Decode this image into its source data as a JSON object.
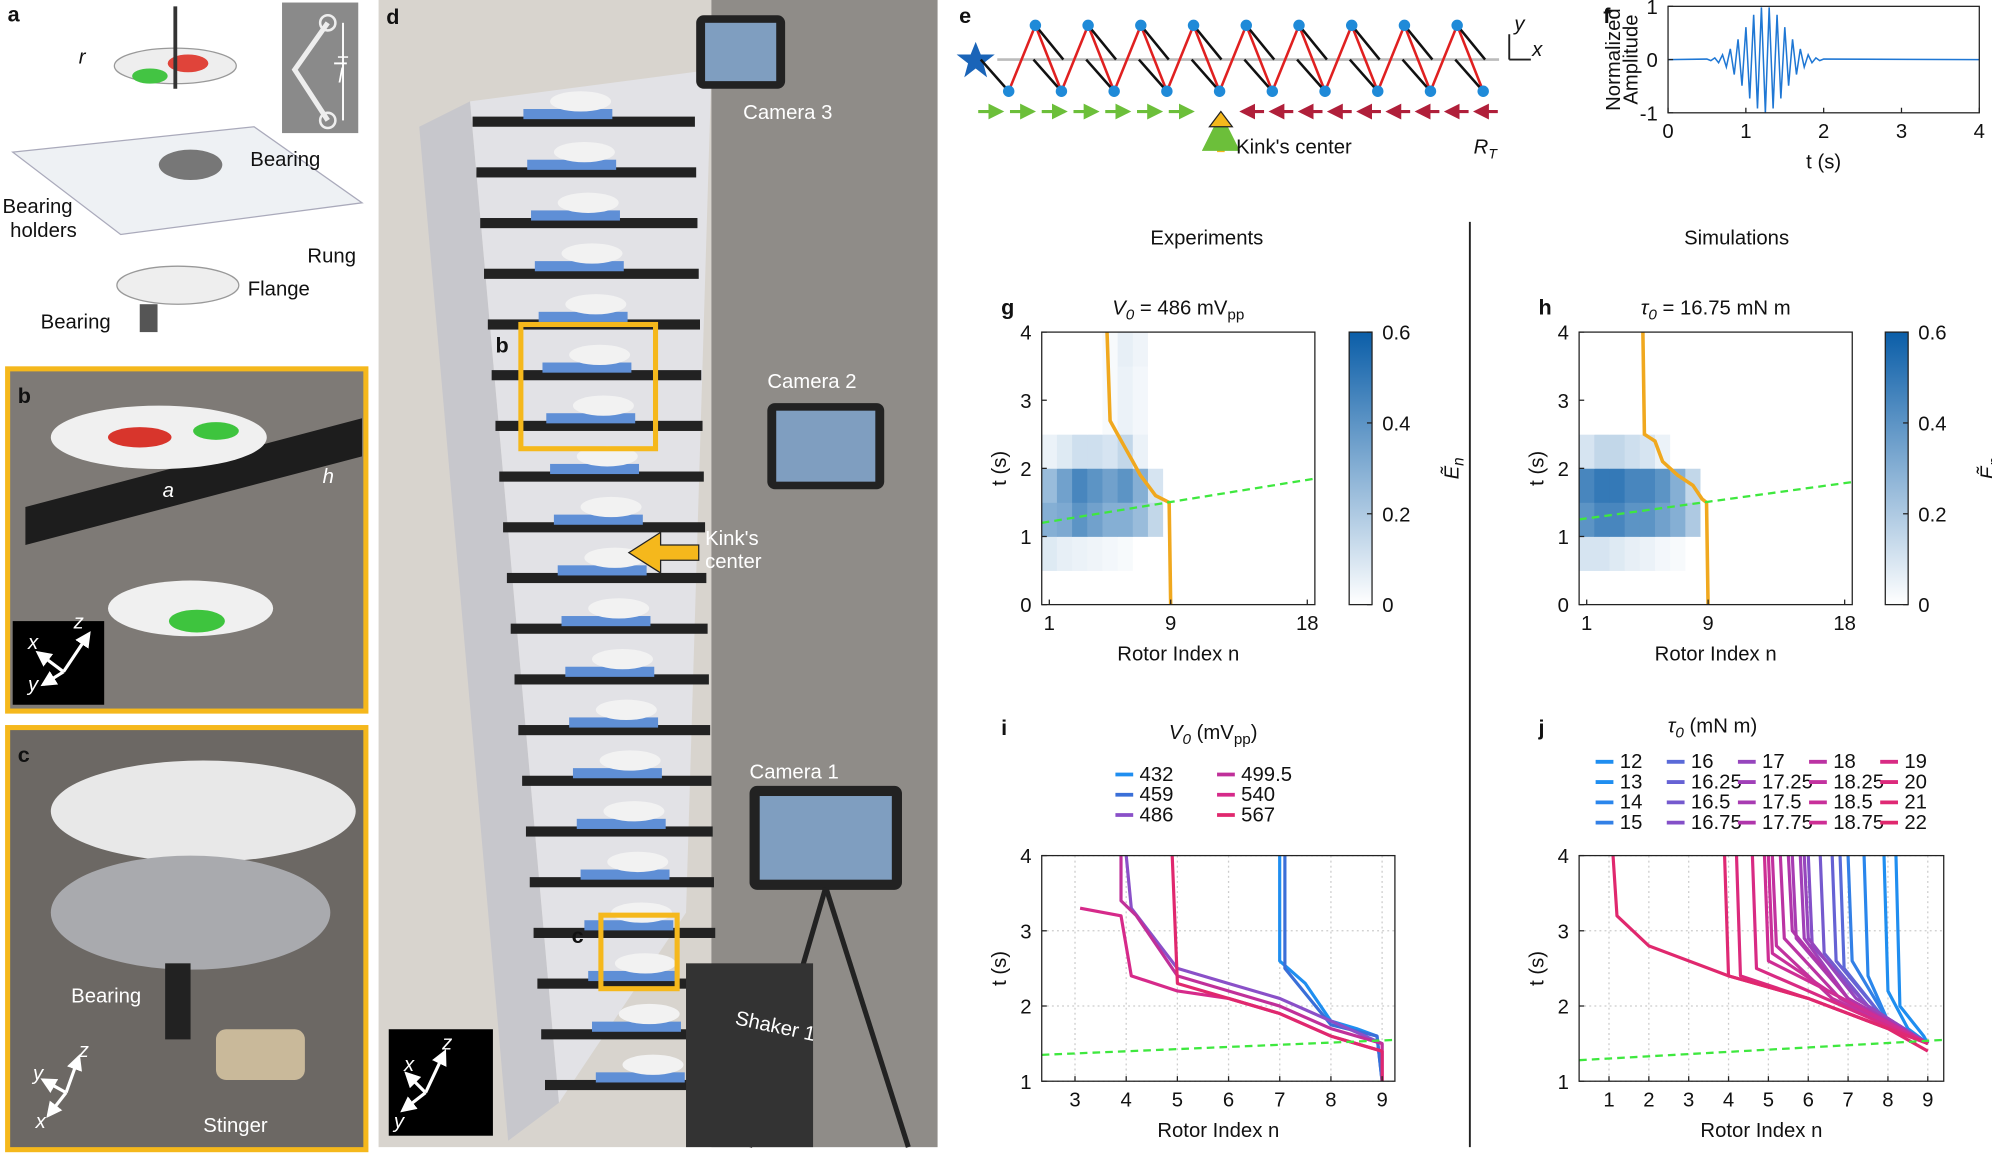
{
  "panel_labels": [
    "a",
    "b",
    "c",
    "d",
    "e",
    "f",
    "g",
    "h",
    "i",
    "j"
  ],
  "a": {
    "r": "r",
    "l": "l",
    "bearing_top": "Bearing",
    "bearing_holders": [
      "Bearing",
      "holders"
    ],
    "rung": "Rung",
    "flange": "Flange",
    "bearing_bottom": "Bearing"
  },
  "b": {
    "a": "a",
    "h": "h",
    "axes": [
      "x",
      "y",
      "z"
    ]
  },
  "c": {
    "bearing": "Bearing",
    "stinger": "Stinger",
    "axes": [
      "x",
      "y",
      "z"
    ]
  },
  "d": {
    "inset_b": "b",
    "inset_c": "c",
    "kink": [
      "Kink's",
      "center"
    ],
    "camera3": "Camera 3",
    "camera2": "Camera 2",
    "camera1": "Camera 1",
    "shaker": "Shaker 1",
    "axes": [
      "x",
      "y",
      "z"
    ]
  },
  "e": {
    "kink": "Kink's center",
    "rt": "R",
    "rt_sub": "T",
    "axes": [
      "x",
      "y"
    ]
  },
  "headings": [
    "Experiments",
    "Simulations"
  ],
  "chart_data": [
    {
      "type": "line",
      "ylabel": [
        "Normalized",
        "Amplitude"
      ],
      "xlabel": "t (s)",
      "xlim": [
        0,
        4
      ],
      "ylim": [
        -1,
        1
      ],
      "xticks": [
        0,
        1,
        2,
        3,
        4
      ],
      "yticks": [
        -1,
        0,
        1
      ],
      "color": "#1f77d4",
      "x": [
        0,
        0.5,
        0.55,
        0.6,
        0.65,
        0.7,
        0.75,
        0.8,
        0.85,
        0.9,
        0.95,
        1,
        1.05,
        1.1,
        1.15,
        1.2,
        1.25,
        1.3,
        1.35,
        1.4,
        1.45,
        1.5,
        1.55,
        1.6,
        1.65,
        1.7,
        1.75,
        1.8,
        1.85,
        1.9,
        1.95,
        2,
        4
      ],
      "values": [
        0,
        0.01,
        -0.02,
        0.03,
        -0.06,
        0.09,
        -0.14,
        0.2,
        -0.28,
        0.38,
        -0.49,
        0.61,
        -0.73,
        0.84,
        -0.92,
        0.98,
        -1,
        0.98,
        -0.92,
        0.84,
        -0.73,
        0.61,
        -0.49,
        0.38,
        -0.28,
        0.2,
        -0.14,
        0.09,
        -0.06,
        0.03,
        -0.02,
        0.01,
        0
      ]
    },
    {
      "type": "heatmap",
      "title": {
        "symbol": "V",
        "sub": "0",
        "text": " = 486 mV",
        "unit_sub": "pp"
      },
      "xlabel": "Rotor Index n",
      "ylabel": "t (s)",
      "xlim": [
        0.5,
        18.5
      ],
      "ylim": [
        0,
        4
      ],
      "xticks": [
        1,
        9,
        18
      ],
      "yticks": [
        0,
        1,
        2,
        3,
        4
      ],
      "x": [
        1,
        2,
        3,
        4,
        5,
        6,
        7,
        8,
        9,
        10,
        11,
        12,
        13,
        14,
        15,
        16,
        17,
        18
      ],
      "y_edges": [
        0,
        0.5,
        1,
        1.5,
        2,
        2.5,
        3,
        3.5,
        4
      ],
      "z": [
        [
          0,
          0,
          0,
          0,
          0,
          0,
          0,
          0,
          0,
          0,
          0,
          0,
          0,
          0,
          0,
          0,
          0,
          0
        ],
        [
          0.08,
          0.06,
          0.05,
          0.04,
          0.03,
          0.02,
          0,
          0,
          0,
          0,
          0,
          0,
          0,
          0,
          0,
          0,
          0,
          0
        ],
        [
          0.3,
          0.32,
          0.4,
          0.35,
          0.3,
          0.3,
          0.25,
          0.15,
          0,
          0,
          0,
          0,
          0,
          0,
          0,
          0,
          0,
          0
        ],
        [
          0.25,
          0.35,
          0.45,
          0.4,
          0.35,
          0.4,
          0.3,
          0.1,
          0,
          0,
          0,
          0,
          0,
          0,
          0,
          0,
          0,
          0
        ],
        [
          0.05,
          0.08,
          0.12,
          0.12,
          0.1,
          0.15,
          0.05,
          0,
          0,
          0,
          0,
          0,
          0,
          0,
          0,
          0,
          0,
          0
        ],
        [
          0,
          0,
          0,
          0,
          0.02,
          0.05,
          0.03,
          0,
          0,
          0,
          0,
          0,
          0,
          0,
          0,
          0,
          0,
          0
        ],
        [
          0,
          0,
          0,
          0,
          0.02,
          0.05,
          0.03,
          0,
          0,
          0,
          0,
          0,
          0,
          0,
          0,
          0,
          0,
          0
        ],
        [
          0,
          0,
          0,
          0,
          0.02,
          0.06,
          0.04,
          0,
          0,
          0,
          0,
          0,
          0,
          0,
          0,
          0,
          0,
          0
        ]
      ],
      "colorbar": {
        "label": {
          "symbol": "Ẽ",
          "sub": "n"
        },
        "lim": [
          0,
          0.6
        ],
        "ticks": [
          0,
          0.2,
          0.4,
          0.6
        ],
        "colors": [
          "#ffffff",
          "#0b5ea8"
        ]
      },
      "lines": [
        {
          "color": "#f0a81e",
          "x": [
            4.8,
            5,
            5.5,
            6,
            6.5,
            7,
            7.5,
            8,
            8.9,
            9
          ],
          "y": [
            4,
            2.7,
            2.5,
            2.3,
            2.1,
            1.9,
            1.75,
            1.6,
            1.5,
            0
          ]
        },
        {
          "color": "#3ee83e",
          "dashed": true,
          "x": [
            0.5,
            18.5
          ],
          "y": [
            1.2,
            1.85
          ]
        }
      ]
    },
    {
      "type": "heatmap",
      "title": {
        "symbol": "τ",
        "sub": "0",
        "text": " = 16.75 mN m"
      },
      "xlabel": "Rotor Index n",
      "ylabel": "t (s)",
      "xlim": [
        0.5,
        18.5
      ],
      "ylim": [
        0,
        4
      ],
      "xticks": [
        1,
        9,
        18
      ],
      "yticks": [
        0,
        1,
        2,
        3,
        4
      ],
      "x": [
        1,
        2,
        3,
        4,
        5,
        6,
        7,
        8,
        9,
        10,
        11,
        12,
        13,
        14,
        15,
        16,
        17,
        18
      ],
      "y_edges": [
        0,
        0.5,
        1,
        1.5,
        2,
        2.5,
        3,
        3.5,
        4
      ],
      "z": [
        [
          0,
          0,
          0,
          0,
          0,
          0,
          0,
          0,
          0,
          0,
          0,
          0,
          0,
          0,
          0,
          0,
          0,
          0
        ],
        [
          0.1,
          0.1,
          0.08,
          0.06,
          0.05,
          0.03,
          0.02,
          0,
          0,
          0,
          0,
          0,
          0,
          0,
          0,
          0,
          0,
          0
        ],
        [
          0.4,
          0.45,
          0.45,
          0.4,
          0.4,
          0.35,
          0.3,
          0.2,
          0,
          0,
          0,
          0,
          0,
          0,
          0,
          0,
          0,
          0
        ],
        [
          0.45,
          0.5,
          0.5,
          0.45,
          0.45,
          0.4,
          0.3,
          0.15,
          0,
          0,
          0,
          0,
          0,
          0,
          0,
          0,
          0,
          0
        ],
        [
          0.1,
          0.15,
          0.15,
          0.12,
          0.1,
          0.05,
          0,
          0,
          0,
          0,
          0,
          0,
          0,
          0,
          0,
          0,
          0,
          0
        ],
        [
          0,
          0,
          0,
          0,
          0,
          0,
          0,
          0,
          0,
          0,
          0,
          0,
          0,
          0,
          0,
          0,
          0,
          0
        ],
        [
          0,
          0,
          0,
          0,
          0,
          0,
          0,
          0,
          0,
          0,
          0,
          0,
          0,
          0,
          0,
          0,
          0,
          0
        ],
        [
          0,
          0,
          0,
          0,
          0,
          0,
          0,
          0,
          0,
          0,
          0,
          0,
          0,
          0,
          0,
          0,
          0,
          0
        ]
      ],
      "colorbar": {
        "label": {
          "symbol": "Ẽ",
          "sub": "n"
        },
        "lim": [
          0,
          0.6
        ],
        "ticks": [
          0,
          0.2,
          0.4,
          0.6
        ],
        "colors": [
          "#ffffff",
          "#0b5ea8"
        ]
      },
      "lines": [
        {
          "color": "#f0a81e",
          "x": [
            4.7,
            4.8,
            5.5,
            6,
            7,
            8,
            8.6,
            8.9,
            9
          ],
          "y": [
            4,
            2.5,
            2.4,
            2.1,
            1.9,
            1.75,
            1.55,
            1.5,
            0
          ]
        },
        {
          "color": "#3ee83e",
          "dashed": true,
          "x": [
            0.5,
            18.5
          ],
          "y": [
            1.25,
            1.8
          ]
        }
      ]
    },
    {
      "type": "line",
      "legend_title": {
        "symbol": "V",
        "sub": "0",
        "text": " (mV",
        "unit_sub": "pp",
        "close": ")"
      },
      "xlabel": "Rotor Index n",
      "ylabel": "t (s)",
      "xlim": [
        2.35,
        9.25
      ],
      "ylim": [
        1,
        4
      ],
      "xticks": [
        3,
        4,
        5,
        6,
        7,
        8,
        9
      ],
      "yticks": [
        1,
        2,
        3,
        4
      ],
      "grid": true,
      "series": [
        {
          "name": "432",
          "color": "#1f8ef0",
          "x": [
            7,
            7,
            7.5,
            8,
            8.5,
            8.9,
            9
          ],
          "y": [
            4,
            2.6,
            2.3,
            1.8,
            1.7,
            1.6,
            1
          ]
        },
        {
          "name": "459",
          "color": "#3a6fd8",
          "x": [
            7.1,
            7.1,
            8,
            8.9,
            9
          ],
          "y": [
            4,
            2.5,
            1.75,
            1.6,
            1
          ]
        },
        {
          "name": "486",
          "color": "#8a50c8",
          "x": [
            4,
            4.1,
            5,
            6,
            7,
            8,
            9,
            9
          ],
          "y": [
            4,
            3.3,
            2.5,
            2.3,
            2.1,
            1.8,
            1.5,
            1
          ]
        },
        {
          "name": "499.5",
          "color": "#c0309a",
          "x": [
            3.9,
            3.9,
            4.2,
            5,
            6,
            7,
            8,
            9,
            9
          ],
          "y": [
            4,
            3.4,
            3.2,
            2.4,
            2.2,
            2,
            1.7,
            1.5,
            1
          ]
        },
        {
          "name": "540",
          "color": "#d62a8a",
          "x": [
            3.1,
            3.9,
            4.1,
            5,
            6,
            7,
            8,
            9,
            9
          ],
          "y": [
            3.3,
            3.2,
            2.4,
            2.2,
            2.1,
            1.9,
            1.6,
            1.4,
            1
          ]
        },
        {
          "name": "567",
          "color": "#e0286e",
          "x": [
            4.9,
            5,
            6,
            7,
            8,
            9,
            9
          ],
          "y": [
            4,
            2.3,
            2.1,
            1.9,
            1.6,
            1.4,
            1
          ]
        }
      ],
      "lines": [
        {
          "color": "#3ee83e",
          "dashed": true,
          "x": [
            2.35,
            9.25
          ],
          "y": [
            1.35,
            1.55
          ]
        }
      ]
    },
    {
      "type": "line",
      "legend_title": {
        "symbol": "τ",
        "sub": "0",
        "text": " (mN m)"
      },
      "xlabel": "Rotor Index n",
      "ylabel": "t (s)",
      "xlim": [
        0.25,
        9.4
      ],
      "ylim": [
        1,
        4
      ],
      "xticks": [
        1,
        2,
        3,
        4,
        5,
        6,
        7,
        8,
        9
      ],
      "yticks": [
        1,
        2,
        3,
        4
      ],
      "grid": true,
      "series": [
        {
          "name": "12",
          "color": "#1f8ef0",
          "x": [
            8.2,
            8.3,
            8.9,
            9
          ],
          "y": [
            4,
            2,
            1.6,
            1.5
          ]
        },
        {
          "name": "13",
          "color": "#1f8ef0",
          "x": [
            7.9,
            8,
            8.5,
            9
          ],
          "y": [
            4,
            2.2,
            1.7,
            1.5
          ]
        },
        {
          "name": "14",
          "color": "#2a86ec",
          "x": [
            7.4,
            7.5,
            8,
            9
          ],
          "y": [
            4,
            2.4,
            1.8,
            1.5
          ]
        },
        {
          "name": "15",
          "color": "#3380e6",
          "x": [
            7,
            7.1,
            8,
            9
          ],
          "y": [
            4,
            2.6,
            1.8,
            1.5
          ]
        },
        {
          "name": "16",
          "color": "#5a6ad8",
          "x": [
            6.8,
            6.9,
            7.8,
            9
          ],
          "y": [
            4,
            2.5,
            1.9,
            1.5
          ]
        },
        {
          "name": "16.25",
          "color": "#6662d4",
          "x": [
            6.6,
            6.7,
            7.8,
            9
          ],
          "y": [
            4,
            2.6,
            1.9,
            1.5
          ]
        },
        {
          "name": "16.5",
          "color": "#755ace",
          "x": [
            6.3,
            6.4,
            7.5,
            9
          ],
          "y": [
            4,
            2.7,
            2,
            1.5
          ]
        },
        {
          "name": "16.75",
          "color": "#8450c8",
          "x": [
            6,
            6.1,
            7.5,
            9
          ],
          "y": [
            4,
            2.8,
            2,
            1.5
          ]
        },
        {
          "name": "17",
          "color": "#9646bd",
          "x": [
            5.9,
            6,
            7.2,
            9
          ],
          "y": [
            4,
            2.9,
            2.1,
            1.5
          ]
        },
        {
          "name": "17.25",
          "color": "#a040b8",
          "x": [
            5.8,
            5.9,
            7,
            9
          ],
          "y": [
            4,
            2.9,
            2.1,
            1.5
          ]
        },
        {
          "name": "17.5",
          "color": "#a83cb2",
          "x": [
            5.6,
            5.7,
            7,
            9
          ],
          "y": [
            4,
            2.9,
            2.1,
            1.5
          ]
        },
        {
          "name": "17.75",
          "color": "#b036ab",
          "x": [
            5.5,
            5.6,
            7,
            9
          ],
          "y": [
            4,
            3,
            2.1,
            1.5
          ]
        },
        {
          "name": "18",
          "color": "#bb33a3",
          "x": [
            5.3,
            5.4,
            6.8,
            9
          ],
          "y": [
            4,
            2.9,
            2.1,
            1.5
          ]
        },
        {
          "name": "18.25",
          "color": "#c2329f",
          "x": [
            5.1,
            5.2,
            6.6,
            9
          ],
          "y": [
            4,
            2.8,
            2.1,
            1.5
          ]
        },
        {
          "name": "18.5",
          "color": "#c8309a",
          "x": [
            5,
            5.1,
            6.5,
            9
          ],
          "y": [
            4,
            2.7,
            2.2,
            1.5
          ]
        },
        {
          "name": "18.75",
          "color": "#ce2e94",
          "x": [
            4.9,
            5,
            6.5,
            9
          ],
          "y": [
            4,
            2.6,
            2.2,
            1.5
          ]
        },
        {
          "name": "19",
          "color": "#d82b84",
          "x": [
            4.6,
            4.7,
            6,
            9
          ],
          "y": [
            4,
            2.5,
            2.2,
            1.5
          ]
        },
        {
          "name": "20",
          "color": "#dc2a7c",
          "x": [
            4.2,
            4.3,
            6,
            9
          ],
          "y": [
            4,
            2.4,
            2.1,
            1.5
          ]
        },
        {
          "name": "21",
          "color": "#df2974",
          "x": [
            3.9,
            4,
            6,
            9
          ],
          "y": [
            4,
            2.4,
            2.1,
            1.5
          ]
        },
        {
          "name": "22",
          "color": "#e0286e",
          "x": [
            1.1,
            1.2,
            2,
            4,
            6,
            8,
            9
          ],
          "y": [
            4,
            3.2,
            2.8,
            2.4,
            2.1,
            1.7,
            1.4
          ]
        }
      ],
      "lines": [
        {
          "color": "#3ee83e",
          "dashed": true,
          "x": [
            0.25,
            9.4
          ],
          "y": [
            1.28,
            1.55
          ]
        }
      ]
    }
  ]
}
